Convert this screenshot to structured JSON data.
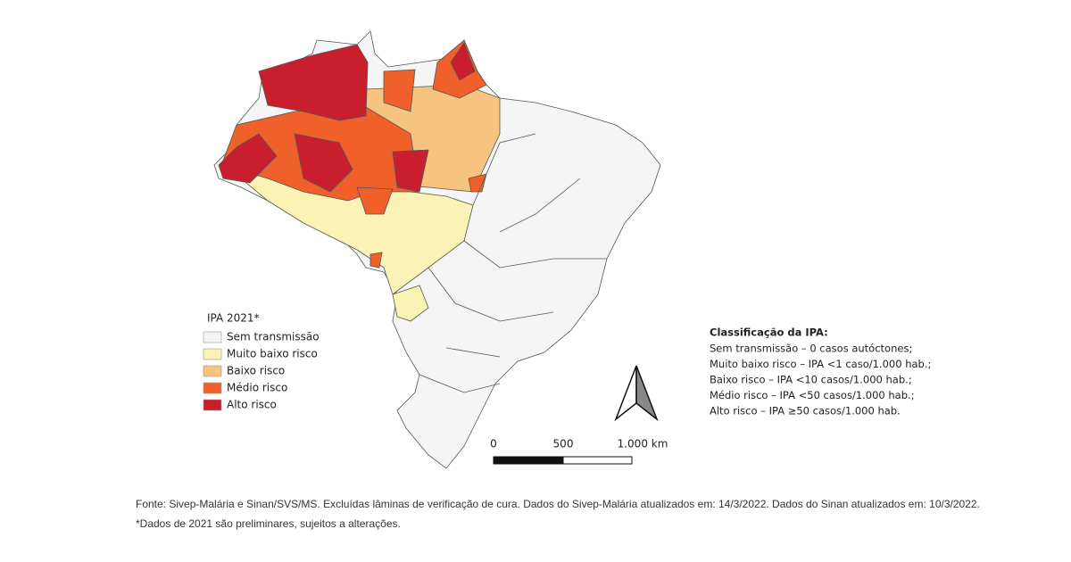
{
  "legend": {
    "title": "IPA 2021*",
    "items": [
      {
        "label": "Sem transmissão",
        "color": "#f4f4f4"
      },
      {
        "label": "Muito baixo risco",
        "color": "#fbf3b5"
      },
      {
        "label": "Baixo risco",
        "color": "#f7c47f"
      },
      {
        "label": "Médio risco",
        "color": "#f0602a"
      },
      {
        "label": "Alto risco",
        "color": "#c81e2e"
      }
    ]
  },
  "classification": {
    "title": "Classificação da IPA:",
    "lines": [
      "Sem transmissão – 0 casos autóctones;",
      "Muito baixo risco – IPA <1 caso/1.000 hab.;",
      "Baixo risco – IPA <10 casos/1.000 hab.;",
      "Médio risco – IPA <50 casos/1.000 hab.;",
      "Alto risco – IPA ≥50 casos/1.000 hab."
    ]
  },
  "scale_bar": {
    "labels": [
      "0",
      "500",
      "1.000 km"
    ]
  },
  "footnotes": [
    "Fonte: Sivep-Malária e Sinan/SVS/MS. Excluídas lâminas de verificação de cura. Dados do Sivep-Malária atualizados em: 14/3/2022. Dados do Sinan atualizados em: 10/3/2022.",
    "*Dados de 2021 são preliminares, sujeitos a alterações."
  ]
}
